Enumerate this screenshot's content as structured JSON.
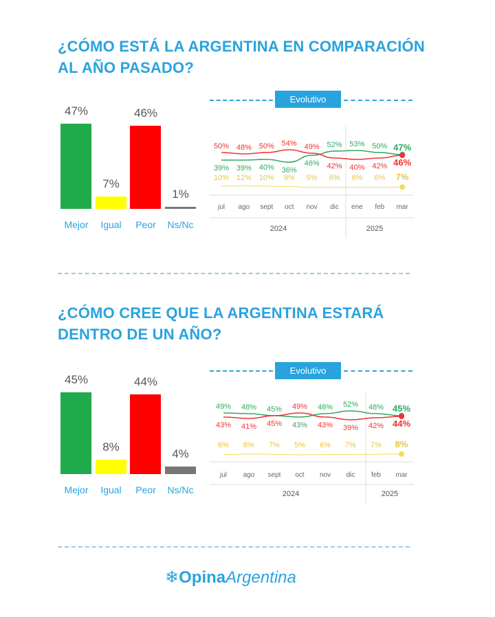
{
  "colors": {
    "accent": "#29a3dd",
    "mejor": "#1faa4b",
    "igual": "#ffff00",
    "peor": "#ff0000",
    "nsnc": "#777777",
    "line_green": "#2eaa5c",
    "line_red": "#e33",
    "line_yellow": "#f2dc5c"
  },
  "sections": [
    {
      "title_line1": "¿CÓMO ESTÁ LA ARGENTINA EN COMPARACIÓN",
      "title_line2": "AL AÑO PASADO?",
      "banner": "Evolutivo"
    },
    {
      "title_line1": "¿CÓMO CREE QUE LA ARGENTINA ESTARÁ",
      "title_line2": "DENTRO DE UN AÑO?",
      "banner": "Evolutivo"
    }
  ],
  "logo": {
    "bold": "Opina",
    "light": "Argentina"
  },
  "chart_data": [
    {
      "type": "bar",
      "categories": [
        "Mejor",
        "Igual",
        "Peor",
        "Ns/Nc"
      ],
      "values": [
        47,
        7,
        46,
        1
      ],
      "labels": [
        "47%",
        "7%",
        "46%",
        "1%"
      ]
    },
    {
      "type": "line",
      "title": "Evolutivo",
      "categories": [
        "jul",
        "ago",
        "sept",
        "oct",
        "nov",
        "dic",
        "ene",
        "feb",
        "mar"
      ],
      "years": [
        "2024",
        "2025"
      ],
      "series": [
        {
          "key": "mejor",
          "values": [
            39,
            39,
            40,
            36,
            46,
            52,
            53,
            50,
            47
          ]
        },
        {
          "key": "peor",
          "values": [
            50,
            48,
            50,
            54,
            49,
            42,
            40,
            42,
            46
          ]
        },
        {
          "key": "igual",
          "values": [
            10,
            12,
            10,
            9,
            5,
            6,
            6,
            6,
            7
          ]
        }
      ]
    },
    {
      "type": "bar",
      "categories": [
        "Mejor",
        "Igual",
        "Peor",
        "Ns/Nc"
      ],
      "values": [
        45,
        8,
        44,
        4
      ],
      "labels": [
        "45%",
        "8%",
        "44%",
        "4%"
      ]
    },
    {
      "type": "line",
      "title": "Evolutivo",
      "categories": [
        "jul",
        "ago",
        "sept",
        "oct",
        "nov",
        "dic",
        "feb",
        "mar"
      ],
      "years": [
        "2024",
        "2025"
      ],
      "series": [
        {
          "key": "mejor",
          "values": [
            49,
            48,
            45,
            43,
            48,
            52,
            48,
            45
          ]
        },
        {
          "key": "peor",
          "values": [
            43,
            41,
            45,
            49,
            43,
            39,
            42,
            44
          ]
        },
        {
          "key": "igual",
          "values": [
            6,
            8,
            7,
            5,
            6,
            7,
            7,
            8
          ]
        }
      ]
    }
  ]
}
